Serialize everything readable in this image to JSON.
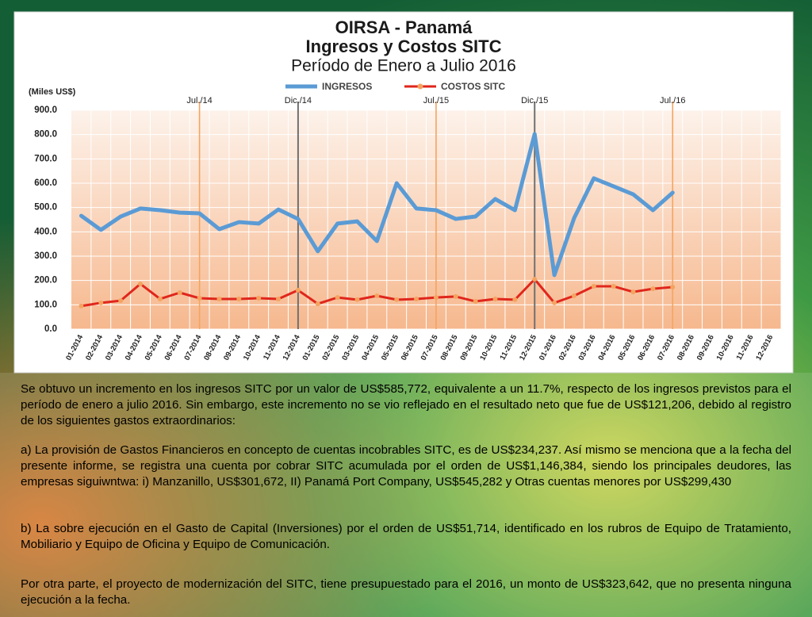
{
  "chart_data": {
    "type": "line",
    "title": "OIRSA - Panamá",
    "subtitle": "Ingresos y Costos SITC",
    "period": "Período de Enero a Julio 2016",
    "y_label": "(Miles US$)",
    "categories": [
      "01-2014",
      "02-2014",
      "03-2014",
      "04-2014",
      "05-2014",
      "06-2014",
      "07-2014",
      "08-2014",
      "09-2014",
      "10-2014",
      "11-2014",
      "12-2014",
      "01-2015",
      "02-2015",
      "03-2015",
      "04-2015",
      "05-2015",
      "06-2015",
      "07-2015",
      "08-2015",
      "09-2015",
      "10-2015",
      "11-2015",
      "12-2015",
      "01-2016",
      "02-2016",
      "03-2016",
      "04-2016",
      "05-2016",
      "06-2016",
      "07-2016",
      "08-2016",
      "09-2016",
      "10-2016",
      "11-2016",
      "12-2016"
    ],
    "series": [
      {
        "name": "INGRESOS",
        "color": "#5b9bd5",
        "values": [
          466,
          408,
          463,
          496,
          489,
          479,
          476,
          411,
          440,
          434,
          492,
          453,
          320,
          434,
          443,
          362,
          600,
          496,
          489,
          453,
          463,
          535,
          489,
          802,
          222,
          456,
          620,
          587,
          554,
          489,
          561,
          null,
          null,
          null,
          null,
          null
        ]
      },
      {
        "name": "COSTOS SITC",
        "color": "#e0261c",
        "marker_color": "#f4a460",
        "values": [
          95,
          108,
          117,
          186,
          124,
          150,
          127,
          124,
          124,
          127,
          124,
          160,
          104,
          130,
          121,
          137,
          121,
          124,
          130,
          134,
          114,
          124,
          121,
          205,
          108,
          137,
          176,
          176,
          153,
          166,
          173,
          null,
          null,
          null,
          null,
          null
        ]
      }
    ],
    "ylim": [
      0,
      900
    ],
    "yticks": [
      {
        "value": 0,
        "label": "0.0"
      },
      {
        "value": 100,
        "label": "100.0"
      },
      {
        "value": 200,
        "label": "200.0"
      },
      {
        "value": 300,
        "label": "300.0"
      },
      {
        "value": 400,
        "label": "400.0"
      },
      {
        "value": 500,
        "label": "500.0"
      },
      {
        "value": 600,
        "label": "600.0"
      },
      {
        "value": 700,
        "label": "700.0"
      },
      {
        "value": 800,
        "label": "800.0"
      },
      {
        "value": 900,
        "label": "900.0"
      }
    ],
    "grid": true,
    "legend": "top",
    "annotations": [
      {
        "label": "Jul./14",
        "category": "07-2014",
        "color": "#f4a460"
      },
      {
        "label": "Dic./14",
        "category": "12-2014",
        "color": "#707070"
      },
      {
        "label": "Jul./15",
        "category": "07-2015",
        "color": "#f4a460"
      },
      {
        "label": "Dic./15",
        "category": "12-2015",
        "color": "#707070"
      },
      {
        "label": "Jul./16",
        "category": "07-2016",
        "color": "#f4a460"
      }
    ]
  },
  "paragraphs": [
    "Se obtuvo un incremento en los ingresos SITC por un valor de US$585,772, equivalente a un 11.7%, respecto de los ingresos previstos para el período de enero a julio 2016. Sin embargo, este incremento no se vio reflejado en el resultado neto que fue de US$121,206, debido al registro de los siguientes gastos extraordinarios:",
    "a) La provisión de Gastos Financieros en concepto de cuentas incobrables SITC, es de US$234,237. Así mismo se menciona que a la fecha del presente informe, se registra una cuenta por cobrar SITC acumulada por el orden de US$1,146,384, siendo los principales deudores, las empresas siguiwntwa: i) Manzanillo, US$301,672, II) Panamá Port Company, US$545,282 y Otras cuentas menores por US$299,430",
    "b) La sobre ejecución en el Gasto de Capital (Inversiones) por el orden de US$51,714, identificado en los rubros de Equipo de Tratamiento, Mobiliario y Equipo de Oficina y Equipo de Comunicación.",
    "Por otra parte, el proyecto de modernización del SITC, tiene presupuestado para el 2016, un monto de US$323,642, que no presenta ninguna ejecución a la fecha."
  ]
}
